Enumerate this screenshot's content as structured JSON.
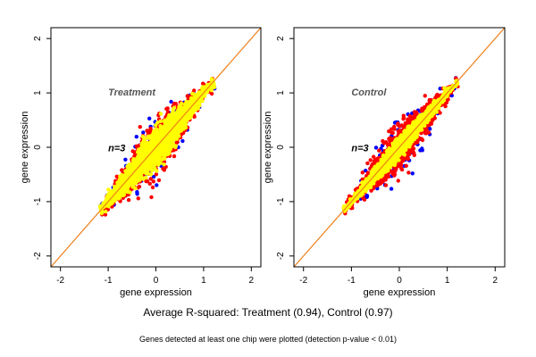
{
  "chart_data": [
    {
      "type": "scatter",
      "annotation": "Treatment",
      "n_label": "n=3",
      "xlabel": "gene expression",
      "ylabel": "gene expression",
      "xlim": [
        -2.2,
        2.2
      ],
      "ylim": [
        -2.2,
        2.2
      ],
      "x_ticks": [
        "-2",
        "-1",
        "0",
        "1",
        "2"
      ],
      "y_ticks": [
        "-2",
        "-1",
        "0",
        "1",
        "2"
      ],
      "grid": false,
      "reference_lines": [
        {
          "intercept": 0,
          "slope": 1,
          "color": "#7b1fa2"
        },
        {
          "intercept": 0,
          "slope": 1,
          "color": "#ff8c00"
        }
      ],
      "colors": {
        "blue": "#0000ff",
        "red": "#ff0000",
        "yellow": "#ffff00",
        "annotation": "#555555"
      },
      "point_clouds": [
        {
          "color": "blue",
          "center": [
            0.0,
            0.0
          ],
          "x_range": [
            -1.15,
            1.2
          ],
          "spread": 0.24,
          "count": 220
        },
        {
          "color": "red",
          "center": [
            0.0,
            0.0
          ],
          "x_range": [
            -1.15,
            1.2
          ],
          "spread": 0.2,
          "count": 900
        },
        {
          "color": "yellow",
          "center": [
            0.0,
            0.0
          ],
          "x_range": [
            -1.15,
            1.2
          ],
          "spread": 0.13,
          "count": 2600
        }
      ]
    },
    {
      "type": "scatter",
      "annotation": "Control",
      "n_label": "n=3",
      "xlabel": "gene expression",
      "ylabel": "gene expression",
      "xlim": [
        -2.2,
        2.2
      ],
      "ylim": [
        -2.2,
        2.2
      ],
      "x_ticks": [
        "-2",
        "-1",
        "0",
        "1",
        "2"
      ],
      "y_ticks": [
        "-2",
        "-1",
        "0",
        "1",
        "2"
      ],
      "grid": false,
      "reference_lines": [
        {
          "intercept": 0,
          "slope": 1,
          "color": "#7b1fa2"
        },
        {
          "intercept": 0,
          "slope": 1,
          "color": "#ff8c00"
        }
      ],
      "colors": {
        "blue": "#0000ff",
        "red": "#ff0000",
        "yellow": "#ffff00",
        "annotation": "#555555"
      },
      "point_clouds": [
        {
          "color": "blue",
          "center": [
            0.0,
            0.0
          ],
          "x_range": [
            -1.15,
            1.2
          ],
          "spread": 0.22,
          "count": 180
        },
        {
          "color": "red",
          "center": [
            0.0,
            0.0
          ],
          "x_range": [
            -1.15,
            1.2
          ],
          "spread": 0.16,
          "count": 1100
        },
        {
          "color": "yellow",
          "center": [
            0.0,
            0.0
          ],
          "x_range": [
            -1.15,
            1.2
          ],
          "spread": 0.07,
          "count": 2200
        }
      ]
    }
  ],
  "captions": {
    "summary": "Average R-squared: Treatment (0.94), Control (0.97)",
    "note": "Genes detected at least one chip were plotted (detection p-value < 0.01)"
  }
}
